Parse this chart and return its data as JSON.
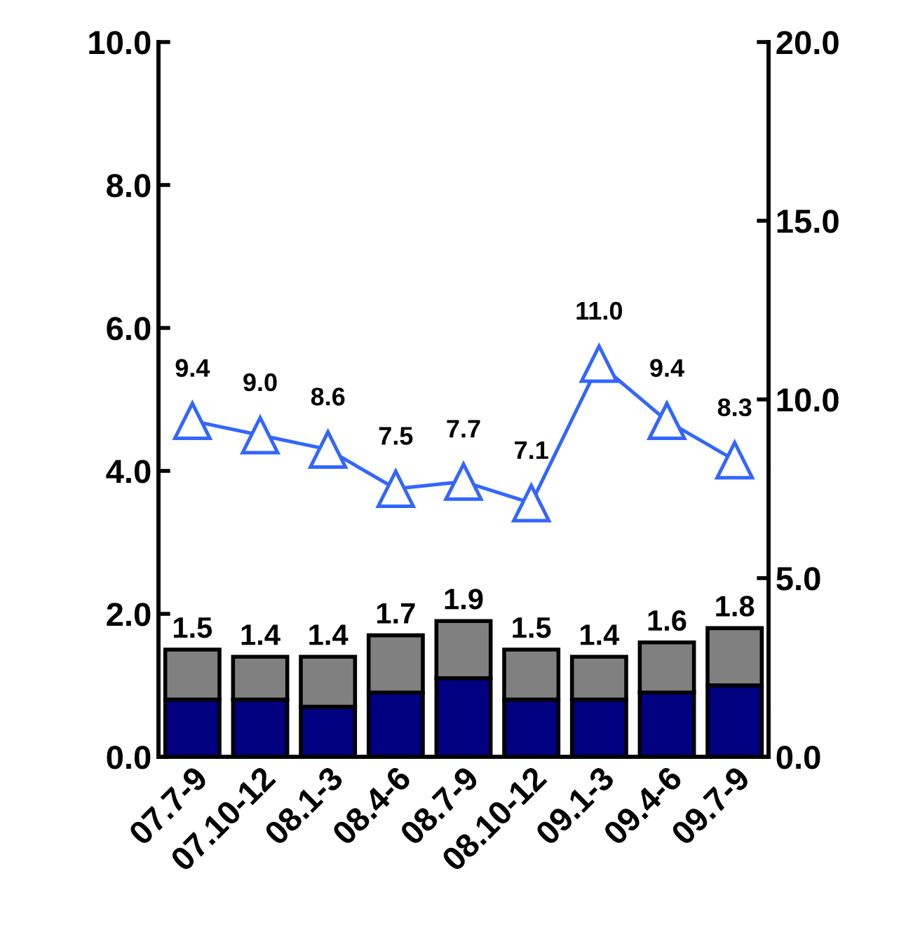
{
  "chart_data": {
    "type": "bar",
    "stacked": true,
    "categories": [
      "07.7-9",
      "07.10-12",
      "08.1-3",
      "08.4-6",
      "08.7-9",
      "08.10-12",
      "09.1-3",
      "09.4-6",
      "09.7-9"
    ],
    "series": [
      {
        "color": "#000080",
        "values": [
          0.8,
          0.8,
          0.7,
          0.9,
          1.1,
          0.8,
          0.8,
          0.9,
          1.0
        ]
      },
      {
        "color": "#808080",
        "values": [
          0.7,
          0.6,
          0.7,
          0.8,
          0.8,
          0.7,
          0.6,
          0.7,
          0.8
        ]
      },
      {
        "type": "line",
        "axis": "y2",
        "color": "#3366ff",
        "marker": "triangle",
        "values": [
          9.4,
          9.0,
          8.6,
          7.5,
          7.7,
          7.1,
          11.0,
          9.4,
          8.3
        ],
        "value_labels": [
          "9.4",
          "9.0",
          "8.6",
          "7.5",
          "7.7",
          "7.1",
          "11.0",
          "9.4",
          "8.3"
        ]
      }
    ],
    "totals": [
      "1.5",
      "1.4",
      "1.4",
      "1.7",
      "1.9",
      "1.5",
      "1.4",
      "1.6",
      "1.8"
    ],
    "ylim": [
      0,
      10
    ],
    "yticks": [
      {
        "value": 0,
        "label": "0.0"
      },
      {
        "value": 2,
        "label": "2.0"
      },
      {
        "value": 4,
        "label": "4.0"
      },
      {
        "value": 6,
        "label": "6.0"
      },
      {
        "value": 8,
        "label": "8.0"
      },
      {
        "value": 10,
        "label": "10.0"
      }
    ],
    "y2lim": [
      0,
      20
    ],
    "y2ticks": [
      {
        "value": 0,
        "label": "0.0"
      },
      {
        "value": 5,
        "label": "5.0"
      },
      {
        "value": 10,
        "label": "10.0"
      },
      {
        "value": 15,
        "label": "15.0"
      },
      {
        "value": 20,
        "label": "20.0"
      }
    ],
    "grid": false,
    "legend": false
  }
}
